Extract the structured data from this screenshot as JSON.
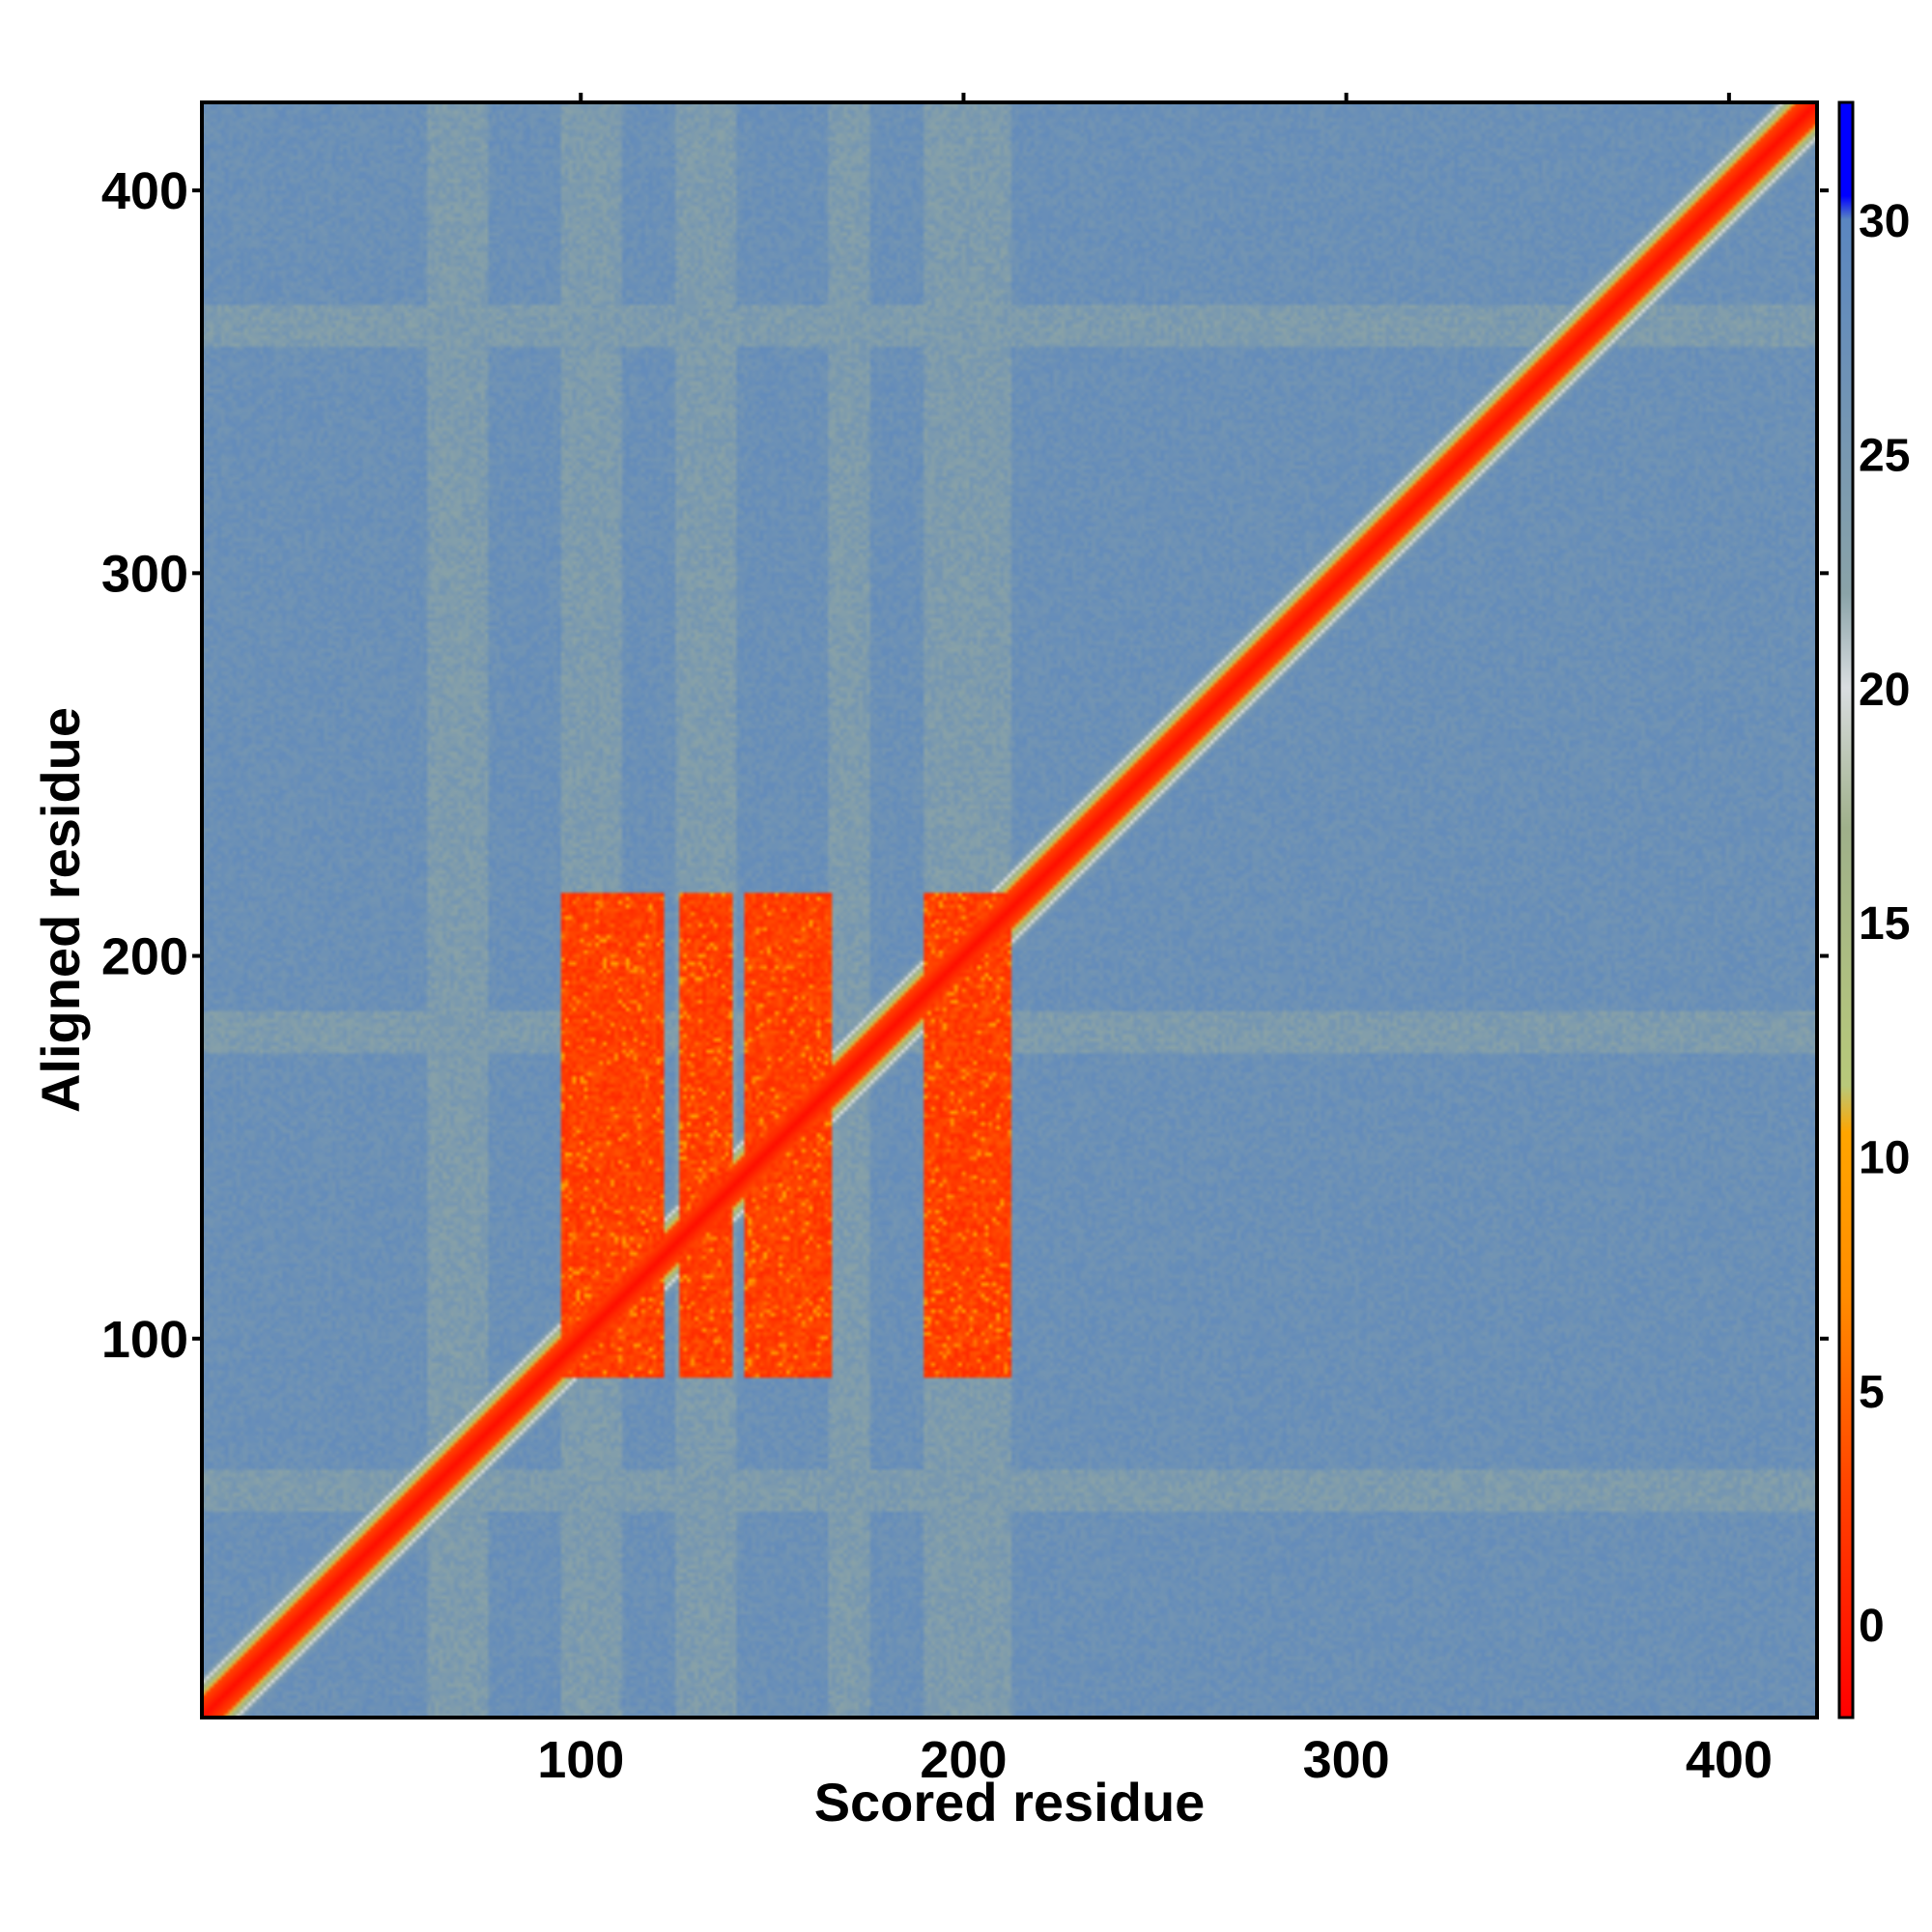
{
  "chart_data": {
    "type": "heatmap",
    "title": "",
    "xlabel": "Scored residue",
    "ylabel": "Aligned residue",
    "xlim": [
      1,
      423
    ],
    "ylim": [
      1,
      423
    ],
    "x_ticks": [
      100,
      200,
      300,
      400
    ],
    "y_ticks": [
      100,
      200,
      300,
      400
    ],
    "colorbar": {
      "range": [
        -2,
        32.5
      ],
      "ticks": [
        0,
        5,
        10,
        15,
        20,
        25,
        30
      ],
      "color_stops": [
        {
          "value": -2,
          "color": "#ff0000"
        },
        {
          "value": 3,
          "color": "#ff4500"
        },
        {
          "value": 7,
          "color": "#ff8c00"
        },
        {
          "value": 10.5,
          "color": "#ffa500"
        },
        {
          "value": 11.5,
          "color": "#b8c97a"
        },
        {
          "value": 17,
          "color": "#9fb08a"
        },
        {
          "value": 20,
          "color": "#d9dde0"
        },
        {
          "value": 22,
          "color": "#8aa3a8"
        },
        {
          "value": 30,
          "color": "#5a86c0"
        },
        {
          "value": 30.5,
          "color": "#0000ff"
        },
        {
          "value": 32.5,
          "color": "#0000ff"
        }
      ]
    },
    "background_value": 27,
    "diagonal": {
      "value": -1,
      "half_width_residues": 5
    },
    "low_error_blocks": {
      "x_ranges": [
        [
          95,
          121
        ],
        [
          126,
          139
        ],
        [
          143,
          165
        ],
        [
          190,
          212
        ]
      ],
      "y_range": [
        90,
        216
      ],
      "value": 1
    },
    "elevated_bands": {
      "x_ranges": [
        [
          60,
          75
        ],
        [
          95,
          110
        ],
        [
          125,
          140
        ],
        [
          165,
          175
        ],
        [
          190,
          212
        ]
      ],
      "y_ranges": [
        [
          360,
          370
        ],
        [
          175,
          185
        ],
        [
          55,
          65
        ]
      ],
      "value": 18
    }
  },
  "colors": {
    "axis": "#000000",
    "background": "#ffffff"
  }
}
